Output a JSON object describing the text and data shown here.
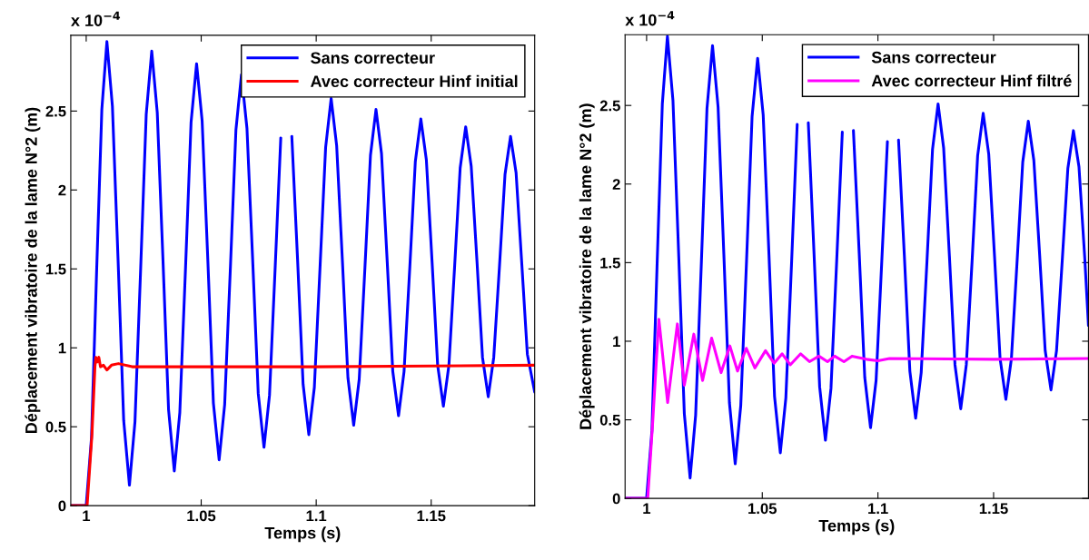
{
  "chart_data": [
    {
      "type": "line",
      "xlabel": "Temps (s)",
      "ylabel": "Déplacement vibratoire de la lame N°2 (m)",
      "annotations": [
        "x 10$^{−4}$"
      ],
      "xlim": [
        0.9933,
        1.195
      ],
      "ylim": [
        0,
        2.98
      ],
      "xticks": [
        1,
        1.05,
        1.1,
        1.15
      ],
      "yticks": [
        0,
        0.5,
        1,
        1.5,
        2,
        2.5
      ],
      "grid": false,
      "legend": "top right",
      "marker": "none",
      "line_style": "solid",
      "series": [
        {
          "name": "Sans correcteur",
          "color": "#0000ff",
          "x": [
            0.9933,
            1.0,
            1.0023,
            1.0045,
            1.0068,
            1.009,
            1.0114,
            1.0139,
            1.0163,
            1.0188,
            1.0212,
            1.0237,
            1.0261,
            1.0285,
            1.0309,
            1.0334,
            1.0358,
            1.0383,
            1.0407,
            1.0432,
            1.0456,
            1.048,
            1.0504,
            1.0529,
            1.0553,
            1.0578,
            1.0602,
            1.0627,
            1.0651,
            1.0675,
            1.0699,
            1.0724,
            1.0748,
            1.0773,
            1.0797,
            1.0822,
            1.0846,
            1.087,
            1.0894,
            1.0919,
            1.0943,
            1.0968,
            1.0992,
            1.1017,
            1.1041,
            1.1065,
            1.1089,
            1.1114,
            1.1138,
            1.1163,
            1.1187,
            1.1212,
            1.1236,
            1.126,
            1.1284,
            1.1309,
            1.1333,
            1.1358,
            1.1382,
            1.1407,
            1.1431,
            1.1455,
            1.1479,
            1.1504,
            1.1528,
            1.1553,
            1.1577,
            1.1602,
            1.1626,
            1.165,
            1.1674,
            1.1699,
            1.1723,
            1.1748,
            1.1772,
            1.1797,
            1.1821,
            1.1845,
            1.1869,
            1.1894,
            1.1918,
            1.195
          ],
          "values": [
            0,
            0,
            0.43,
            1.47,
            2.51,
            2.94,
            2.53,
            1.54,
            0.54,
            0.13,
            0.53,
            1.51,
            2.48,
            2.88,
            2.49,
            1.55,
            0.61,
            0.22,
            0.59,
            1.51,
            2.43,
            2.8,
            2.44,
            1.55,
            0.65,
            0.29,
            0.64,
            1.51,
            2.38,
            2.73,
            2.39,
            1.55,
            0.71,
            0.37,
            0.7,
            1.52,
            2.33,
            null,
            2.34,
            1.56,
            0.77,
            0.45,
            0.75,
            1.52,
            2.27,
            2.58,
            2.28,
            1.55,
            0.81,
            0.51,
            0.8,
            1.51,
            2.22,
            2.51,
            2.23,
            1.54,
            0.85,
            0.57,
            0.85,
            1.51,
            2.18,
            2.45,
            2.19,
            1.54,
            0.89,
            0.63,
            0.89,
            1.52,
            2.14,
            2.4,
            2.15,
            1.55,
            0.94,
            0.69,
            0.94,
            1.52,
            2.1,
            2.34,
            2.11,
            1.53,
            0.96,
            0.72
          ]
        },
        {
          "name": "Avec correcteur Hinf initial",
          "color": "#ff0000",
          "x": [
            0.9933,
            1.0004,
            1.0025,
            1.0038,
            1.0042,
            1.0048,
            1.0055,
            1.0062,
            1.0075,
            1.009,
            1.011,
            1.014,
            1.02,
            1.05,
            1.1,
            1.15,
            1.195
          ],
          "values": [
            0,
            0,
            0.45,
            0.88,
            0.94,
            0.91,
            0.94,
            0.88,
            0.89,
            0.86,
            0.89,
            0.9,
            0.88,
            0.88,
            0.88,
            0.885,
            0.89
          ]
        }
      ]
    },
    {
      "type": "line",
      "xlabel": "Temps (s)",
      "ylabel": "Déplacement vibratoire de la lame N°2 (m)",
      "annotations": [
        "x 10$^{−4}$"
      ],
      "xlim": [
        0.9907,
        1.191
      ],
      "ylim": [
        0,
        2.95
      ],
      "xticks": [
        1,
        1.05,
        1.1,
        1.15
      ],
      "yticks": [
        0,
        0.5,
        1,
        1.5,
        2,
        2.5
      ],
      "grid": false,
      "legend": "top right",
      "marker": "none",
      "line_style": "solid",
      "series": [
        {
          "name": "Sans correcteur",
          "color": "#0000ff",
          "x": [
            0.9907,
            1.0,
            1.0023,
            1.0045,
            1.0068,
            1.009,
            1.0114,
            1.0139,
            1.0163,
            1.0188,
            1.0212,
            1.0237,
            1.0261,
            1.0285,
            1.0309,
            1.0334,
            1.0358,
            1.0383,
            1.0407,
            1.0432,
            1.0456,
            1.048,
            1.0504,
            1.0529,
            1.0553,
            1.0578,
            1.0602,
            1.0627,
            1.0651,
            1.0675,
            1.0699,
            1.0724,
            1.0748,
            1.0773,
            1.0797,
            1.0822,
            1.0846,
            1.087,
            1.0894,
            1.0919,
            1.0943,
            1.0968,
            1.0992,
            1.1017,
            1.1041,
            1.1065,
            1.1089,
            1.1114,
            1.1138,
            1.1163,
            1.1187,
            1.1212,
            1.1236,
            1.126,
            1.1284,
            1.1309,
            1.1333,
            1.1358,
            1.1382,
            1.1407,
            1.1431,
            1.1455,
            1.1479,
            1.1504,
            1.1528,
            1.1553,
            1.1577,
            1.1602,
            1.1626,
            1.165,
            1.1674,
            1.1699,
            1.1723,
            1.1748,
            1.1772,
            1.1797,
            1.1821,
            1.1845,
            1.1869,
            1.1894,
            1.191
          ],
          "values": [
            0,
            0,
            0.43,
            1.47,
            2.51,
            2.94,
            2.53,
            1.54,
            0.54,
            0.13,
            0.53,
            1.51,
            2.48,
            2.88,
            2.49,
            1.55,
            0.61,
            0.22,
            0.59,
            1.51,
            2.43,
            2.8,
            2.44,
            1.55,
            0.65,
            0.29,
            0.64,
            1.51,
            2.38,
            null,
            2.39,
            1.55,
            0.71,
            0.37,
            0.7,
            1.52,
            2.33,
            null,
            2.34,
            1.56,
            0.77,
            0.45,
            0.75,
            1.52,
            2.27,
            null,
            2.28,
            1.55,
            0.81,
            0.51,
            0.8,
            1.51,
            2.22,
            2.51,
            2.23,
            1.54,
            0.85,
            0.57,
            0.85,
            1.51,
            2.18,
            2.45,
            2.19,
            1.54,
            0.89,
            0.63,
            0.89,
            1.52,
            2.14,
            2.4,
            2.15,
            1.55,
            0.94,
            0.69,
            0.94,
            1.52,
            2.1,
            2.34,
            2.11,
            1.53,
            1.1
          ]
        },
        {
          "name": "Avec correcteur Hinf filtré",
          "color": "#ff00ff",
          "x": [
            0.9907,
            1.0005,
            1.0027,
            1.0053,
            1.0091,
            1.0133,
            1.0163,
            1.0204,
            1.0242,
            1.0281,
            1.0322,
            1.036,
            1.0393,
            1.0431,
            1.0468,
            1.0514,
            1.0551,
            1.0586,
            1.0621,
            1.0666,
            1.0704,
            1.0745,
            1.0782,
            1.0813,
            1.0853,
            1.0888,
            1.095,
            1.1,
            1.105,
            1.15,
            1.191
          ],
          "values": [
            0,
            0,
            0.5,
            1.14,
            0.61,
            1.11,
            0.72,
            1.045,
            0.75,
            1.02,
            0.8,
            0.97,
            0.81,
            0.955,
            0.83,
            0.94,
            0.86,
            0.92,
            0.85,
            0.92,
            0.87,
            0.905,
            0.87,
            0.905,
            0.87,
            0.905,
            0.885,
            0.875,
            0.89,
            0.885,
            0.89
          ]
        }
      ]
    }
  ]
}
